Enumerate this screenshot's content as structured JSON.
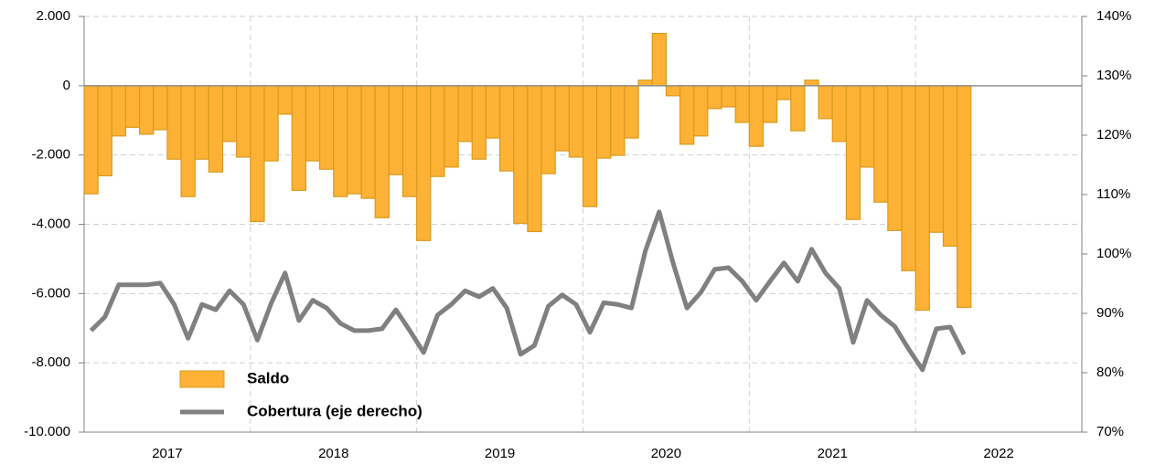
{
  "chart_data": {
    "type": "bar",
    "period_labels": [
      "2017",
      "2018",
      "2019",
      "2020",
      "2021",
      "2022"
    ],
    "periods_per_label": 12,
    "ylim": [
      -10000,
      2000
    ],
    "yticks": [
      {
        "value": 2000,
        "label": "2.000"
      },
      0,
      {
        "value": -2000,
        "label": "-2.000"
      },
      {
        "value": -4000,
        "label": "-4.000"
      },
      {
        "value": -6000,
        "label": "-6.000"
      },
      {
        "value": -8000,
        "label": "-8.000"
      },
      {
        "value": -10000,
        "label": "-10.000"
      }
    ],
    "y2lim": [
      70,
      140
    ],
    "y2ticks": [
      {
        "value": 140,
        "label": "140%"
      },
      {
        "value": 130,
        "label": "130%"
      },
      {
        "value": 120,
        "label": "120%"
      },
      {
        "value": 110,
        "label": "110%"
      },
      {
        "value": 100,
        "label": "100%"
      },
      {
        "value": 90,
        "label": "90%"
      },
      {
        "value": 80,
        "label": "80%"
      },
      {
        "value": 70,
        "label": "70%"
      }
    ],
    "grid": true,
    "legend": "lower left",
    "series": [
      {
        "name": "Saldo",
        "type": "bar",
        "color": "#fdb135",
        "edge_color": "#d99b1e",
        "values": [
          -3120,
          -2600,
          -1450,
          -1200,
          -1400,
          -1270,
          -2120,
          -3200,
          -2120,
          -2490,
          -1610,
          -2060,
          -3920,
          -2170,
          -820,
          -3020,
          -2170,
          -2410,
          -3200,
          -3120,
          -3250,
          -3810,
          -2570,
          -3200,
          -4470,
          -2620,
          -2350,
          -1610,
          -2120,
          -1510,
          -2460,
          -3970,
          -4210,
          -2540,
          -1880,
          -2060,
          -3490,
          -2090,
          -2010,
          -1510,
          160,
          1510,
          -290,
          -1690,
          -1450,
          -660,
          -610,
          -1060,
          -1750,
          -1060,
          -400,
          -1300,
          160,
          -950,
          -1610,
          -3860,
          -2350,
          -3360,
          -4180,
          -5340,
          -6480,
          -4230,
          -4630,
          -6400
        ]
      },
      {
        "name": "Cobertura (eje derecho)",
        "type": "line",
        "axis": "y2",
        "color": "#808080",
        "values": [
          87.1,
          89.4,
          94.8,
          94.8,
          94.8,
          95.1,
          91.5,
          85.8,
          91.5,
          90.6,
          93.8,
          91.5,
          85.5,
          91.7,
          96.8,
          88.8,
          92.2,
          90.9,
          88.3,
          87.1,
          87.1,
          87.4,
          90.6,
          87.1,
          83.4,
          89.7,
          91.5,
          93.8,
          92.8,
          94.2,
          90.9,
          83.1,
          84.6,
          91.2,
          93.1,
          91.5,
          86.8,
          91.8,
          91.5,
          90.9,
          100.5,
          107.1,
          98.5,
          90.9,
          93.5,
          97.4,
          97.7,
          95.4,
          92.2,
          95.4,
          98.5,
          95.4,
          100.8,
          96.8,
          94.2,
          85.1,
          92.2,
          89.7,
          87.8,
          84.0,
          80.5,
          87.4,
          87.7,
          83.1
        ]
      }
    ]
  }
}
